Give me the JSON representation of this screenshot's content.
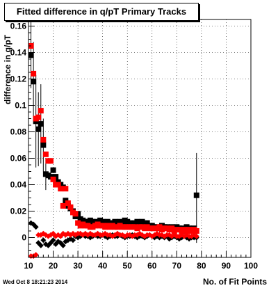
{
  "chart_data": {
    "type": "scatter",
    "title": "Fitted difference in q/pT Primary Tracks",
    "ylabel": "difference in q/pT",
    "xlabel": "No. of Fit Points",
    "xlim": [
      10,
      100
    ],
    "ylim": [
      -0.015,
      0.165
    ],
    "x_ticks": [
      "10",
      "20",
      "30",
      "40",
      "50",
      "60",
      "70",
      "80",
      "90",
      "100"
    ],
    "y_ticks": [
      "0",
      "0.02",
      "0.04",
      "0.06",
      "0.08",
      "0.1",
      "0.12",
      "0.14",
      "0.16"
    ],
    "grid": true,
    "series": [
      {
        "color": "#000000",
        "marker": "square",
        "points": [
          [
            11,
            0.138
          ],
          [
            12,
            0.118
          ],
          [
            13,
            0.088
          ],
          [
            14,
            0.082
          ],
          [
            15,
            0.086
          ],
          [
            16,
            0.07
          ],
          [
            17,
            0.048
          ],
          [
            18,
            0.047
          ],
          [
            19,
            0.046
          ],
          [
            20,
            0.051
          ],
          [
            21,
            0.046
          ],
          [
            22,
            0.042
          ],
          [
            23,
            0.04
          ],
          [
            24,
            0.038
          ],
          [
            25,
            0.028
          ],
          [
            26,
            0.024
          ],
          [
            27,
            0.022
          ],
          [
            28,
            0.02
          ],
          [
            29,
            0.016
          ],
          [
            30,
            0.018
          ],
          [
            31,
            0.014
          ],
          [
            32,
            0.013
          ],
          [
            33,
            0.012
          ],
          [
            34,
            0.012
          ],
          [
            35,
            0.013
          ],
          [
            36,
            0.012
          ],
          [
            37,
            0.012
          ],
          [
            38,
            0.011
          ],
          [
            39,
            0.013
          ],
          [
            40,
            0.012
          ],
          [
            41,
            0.011
          ],
          [
            42,
            0.012
          ],
          [
            43,
            0.011
          ],
          [
            44,
            0.011
          ],
          [
            45,
            0.012
          ],
          [
            46,
            0.01
          ],
          [
            47,
            0.012
          ],
          [
            48,
            0.011
          ],
          [
            49,
            0.013
          ],
          [
            50,
            0.012
          ],
          [
            51,
            0.011
          ],
          [
            52,
            0.01
          ],
          [
            53,
            0.011
          ],
          [
            54,
            0.012
          ],
          [
            55,
            0.011
          ],
          [
            56,
            0.012
          ],
          [
            57,
            0.01
          ],
          [
            58,
            0.011
          ],
          [
            59,
            0.009
          ],
          [
            60,
            0.009
          ],
          [
            61,
            0.008
          ],
          [
            62,
            0.008
          ],
          [
            63,
            0.007
          ],
          [
            64,
            0.009
          ],
          [
            65,
            0.008
          ],
          [
            66,
            0.008
          ],
          [
            67,
            0.007
          ],
          [
            68,
            0.008
          ],
          [
            69,
            0.007
          ],
          [
            70,
            0.008
          ],
          [
            71,
            0.007
          ],
          [
            72,
            0.007
          ],
          [
            73,
            0.006
          ],
          [
            74,
            0.008
          ],
          [
            75,
            0.007
          ],
          [
            76,
            0.006
          ],
          [
            77,
            0.007
          ],
          [
            78,
            0.032
          ]
        ]
      },
      {
        "color": "#ff0000",
        "marker": "square",
        "points": [
          [
            11,
            0.145
          ],
          [
            12,
            0.124
          ],
          [
            13,
            0.09
          ],
          [
            14,
            0.091
          ],
          [
            15,
            0.096
          ],
          [
            16,
            0.074
          ],
          [
            17,
            0.063
          ],
          [
            18,
            0.058
          ],
          [
            19,
            0.058
          ],
          [
            20,
            0.044
          ],
          [
            21,
            0.04
          ],
          [
            22,
            0.04
          ],
          [
            23,
            0.037
          ],
          [
            24,
            0.024
          ],
          [
            25,
            0.037
          ],
          [
            26,
            0.026
          ],
          [
            27,
            0.023
          ],
          [
            28,
            0.019
          ],
          [
            29,
            0.018
          ],
          [
            30,
            0.011
          ],
          [
            31,
            0.009
          ],
          [
            32,
            0.01
          ],
          [
            33,
            0.009
          ],
          [
            34,
            0.009
          ],
          [
            35,
            0.008
          ],
          [
            36,
            0.008
          ],
          [
            37,
            0.009
          ],
          [
            38,
            0.01
          ],
          [
            39,
            0.009
          ],
          [
            40,
            0.009
          ],
          [
            41,
            0.008
          ],
          [
            42,
            0.009
          ],
          [
            43,
            0.008
          ],
          [
            44,
            0.009
          ],
          [
            45,
            0.008
          ],
          [
            46,
            0.008
          ],
          [
            47,
            0.009
          ],
          [
            48,
            0.008
          ],
          [
            49,
            0.008
          ],
          [
            50,
            0.008
          ],
          [
            51,
            0.008
          ],
          [
            52,
            0.008
          ],
          [
            53,
            0.008
          ],
          [
            54,
            0.007
          ],
          [
            55,
            0.008
          ],
          [
            56,
            0.008
          ],
          [
            57,
            0.007
          ],
          [
            58,
            0.008
          ],
          [
            59,
            0.007
          ],
          [
            60,
            0.007
          ],
          [
            61,
            0.007
          ],
          [
            62,
            0.007
          ],
          [
            63,
            0.008
          ],
          [
            64,
            0.006
          ],
          [
            65,
            0.007
          ],
          [
            66,
            0.007
          ],
          [
            67,
            0.006
          ],
          [
            68,
            0.007
          ],
          [
            69,
            0.005
          ],
          [
            70,
            0.006
          ],
          [
            71,
            0.006
          ],
          [
            72,
            0.005
          ],
          [
            73,
            0.006
          ],
          [
            74,
            0.005
          ],
          [
            75,
            0.006
          ],
          [
            76,
            0.005
          ],
          [
            77,
            0.006
          ],
          [
            78,
            0.005
          ]
        ]
      },
      {
        "color": "#000000",
        "marker": "diamond",
        "points": [
          [
            11,
            0.011
          ],
          [
            12,
            0.01
          ],
          [
            13,
            0.008
          ],
          [
            14,
            -0.004
          ],
          [
            15,
            -0.006
          ],
          [
            16,
            -0.002
          ],
          [
            17,
            -0.005
          ],
          [
            18,
            -0.006
          ],
          [
            19,
            -0.004
          ],
          [
            20,
            -0.002
          ],
          [
            21,
            -0.005
          ],
          [
            22,
            -0.003
          ],
          [
            23,
            -0.004
          ],
          [
            24,
            -0.006
          ],
          [
            25,
            -0.003
          ],
          [
            26,
            -0.002
          ],
          [
            27,
            -0.001
          ],
          [
            28,
            -0.002
          ],
          [
            29,
            0.001
          ],
          [
            30,
            0.0
          ],
          [
            31,
            0.001
          ],
          [
            32,
            0.002
          ],
          [
            33,
            0.001
          ],
          [
            34,
            0.001
          ],
          [
            35,
            0.0
          ],
          [
            36,
            0.001
          ],
          [
            37,
            0.002
          ],
          [
            38,
            0.001
          ],
          [
            39,
            0.001
          ],
          [
            40,
            0.002
          ],
          [
            41,
            0.001
          ],
          [
            42,
            0.0
          ],
          [
            43,
            0.001
          ],
          [
            44,
            0.002
          ],
          [
            45,
            0.001
          ],
          [
            46,
            0.001
          ],
          [
            47,
            0.002
          ],
          [
            48,
            0.001
          ],
          [
            49,
            0.0
          ],
          [
            50,
            0.001
          ],
          [
            51,
            0.001
          ],
          [
            52,
            0.002
          ],
          [
            53,
            0.001
          ],
          [
            54,
            0.0
          ],
          [
            55,
            0.001
          ],
          [
            56,
            0.001
          ],
          [
            57,
            0.0
          ],
          [
            58,
            0.001
          ],
          [
            59,
            0.002
          ],
          [
            60,
            0.001
          ],
          [
            61,
            0.0
          ],
          [
            62,
            0.001
          ],
          [
            63,
            0.0
          ],
          [
            64,
            0.001
          ],
          [
            65,
            0.0
          ],
          [
            66,
            0.001
          ],
          [
            67,
            -0.001
          ],
          [
            68,
            0.0
          ],
          [
            69,
            0.001
          ],
          [
            70,
            0.0
          ],
          [
            71,
            -0.001
          ],
          [
            72,
            0.0
          ],
          [
            73,
            0.001
          ],
          [
            74,
            0.0
          ],
          [
            75,
            -0.001
          ],
          [
            76,
            0.0
          ],
          [
            77,
            0.0
          ],
          [
            78,
            0.0
          ]
        ]
      },
      {
        "color": "#ff0000",
        "marker": "diamond",
        "points": [
          [
            11,
            -0.014
          ],
          [
            12,
            -0.014
          ],
          [
            13,
            -0.013
          ],
          [
            14,
            0.002
          ],
          [
            15,
            0.002
          ],
          [
            16,
            0.003
          ],
          [
            17,
            0.002
          ],
          [
            18,
            0.001
          ],
          [
            19,
            0.002
          ],
          [
            20,
            0.003
          ],
          [
            21,
            0.001
          ],
          [
            22,
            0.002
          ],
          [
            23,
            0.001
          ],
          [
            24,
            0.003
          ],
          [
            25,
            0.002
          ],
          [
            26,
            0.003
          ],
          [
            27,
            0.002
          ],
          [
            28,
            0.003
          ],
          [
            29,
            0.002
          ],
          [
            30,
            0.003
          ],
          [
            31,
            0.003
          ],
          [
            32,
            0.002
          ],
          [
            33,
            0.003
          ],
          [
            34,
            0.002
          ],
          [
            35,
            0.003
          ],
          [
            36,
            0.002
          ],
          [
            37,
            0.002
          ],
          [
            38,
            0.003
          ],
          [
            39,
            0.002
          ],
          [
            40,
            0.002
          ],
          [
            41,
            0.003
          ],
          [
            42,
            0.002
          ],
          [
            43,
            0.002
          ],
          [
            44,
            0.001
          ],
          [
            45,
            0.002
          ],
          [
            46,
            0.003
          ],
          [
            47,
            0.002
          ],
          [
            48,
            0.002
          ],
          [
            49,
            0.001
          ],
          [
            50,
            0.002
          ],
          [
            51,
            0.002
          ],
          [
            52,
            0.001
          ],
          [
            53,
            0.002
          ],
          [
            54,
            0.002
          ],
          [
            55,
            0.003
          ],
          [
            56,
            0.002
          ],
          [
            57,
            0.001
          ],
          [
            58,
            0.002
          ],
          [
            59,
            0.002
          ],
          [
            60,
            0.001
          ],
          [
            61,
            0.002
          ],
          [
            62,
            0.003
          ],
          [
            63,
            0.002
          ],
          [
            64,
            0.002
          ],
          [
            65,
            0.001
          ],
          [
            66,
            0.002
          ],
          [
            67,
            0.002
          ],
          [
            68,
            0.001
          ],
          [
            69,
            0.002
          ],
          [
            70,
            0.001
          ],
          [
            71,
            0.001
          ],
          [
            72,
            0.002
          ],
          [
            73,
            0.001
          ],
          [
            74,
            0.002
          ],
          [
            75,
            0.001
          ],
          [
            76,
            0.001
          ],
          [
            77,
            0.002
          ],
          [
            78,
            0.001
          ]
        ]
      }
    ],
    "error_bars": [
      {
        "x": 11,
        "y": 0.138,
        "err": 0.025
      },
      {
        "x": 12,
        "y": 0.118,
        "err": 0.03
      },
      {
        "x": 13,
        "y": 0.088,
        "err": 0.035
      },
      {
        "x": 14,
        "y": 0.082,
        "err": 0.028
      },
      {
        "x": 15,
        "y": 0.086,
        "err": 0.03
      },
      {
        "x": 16,
        "y": 0.07,
        "err": 0.02
      },
      {
        "x": 17,
        "y": 0.048,
        "err": 0.012
      },
      {
        "x": 78,
        "y": 0.032,
        "err": 0.032
      },
      {
        "x": 78,
        "y": 0.0,
        "err": 0.004
      }
    ]
  },
  "footer": {
    "timestamp": "Wed Oct  8 18:21:23 2014"
  }
}
